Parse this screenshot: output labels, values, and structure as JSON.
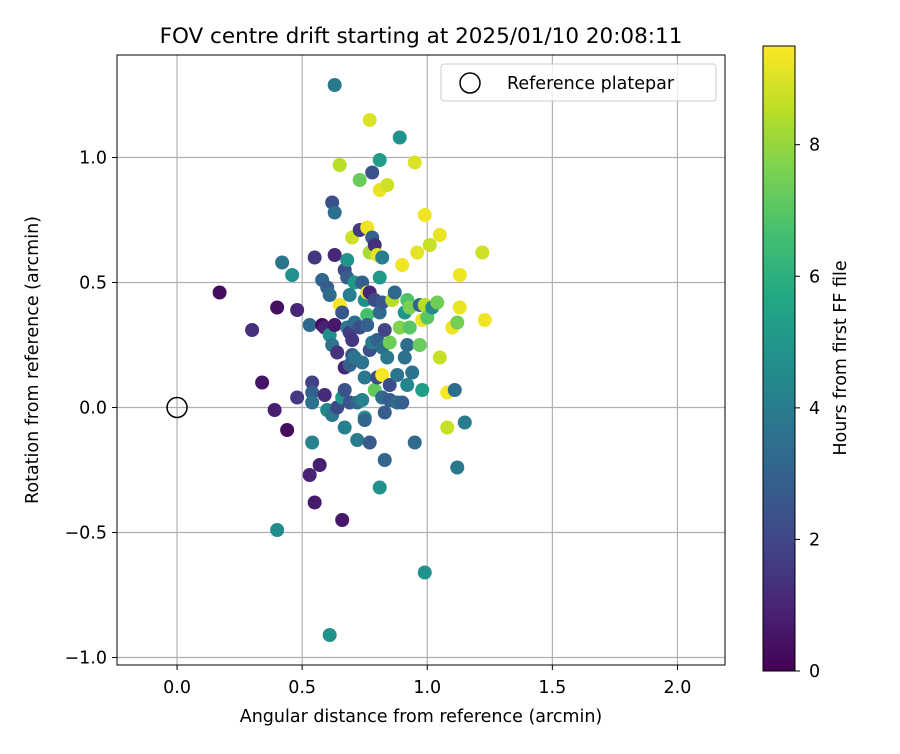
{
  "chart_data": {
    "type": "scatter",
    "title": "FOV centre drift starting at 2025/01/10 20:08:11",
    "xlabel": "Angular distance from reference (arcmin)",
    "ylabel": "Rotation from reference (arcmin)",
    "xlim": [
      -0.24,
      2.19
    ],
    "ylim": [
      -1.03,
      1.41
    ],
    "xticks": [
      0.0,
      0.5,
      1.0,
      1.5,
      2.0
    ],
    "xtick_labels": [
      "0.0",
      "0.5",
      "1.0",
      "1.5",
      "2.0"
    ],
    "yticks": [
      -1.0,
      -0.5,
      0.0,
      0.5,
      1.0
    ],
    "ytick_labels": [
      "−1.0",
      "−0.5",
      "0.0",
      "0.5",
      "1.0"
    ],
    "grid": true,
    "colormap": "viridis",
    "colorbar": {
      "label": "Hours from first FF file",
      "range": [
        0,
        9.5
      ],
      "ticks": [
        0,
        2,
        4,
        6,
        8
      ],
      "tick_labels": [
        "0",
        "2",
        "4",
        "6",
        "8"
      ]
    },
    "legend": {
      "location": "upper right",
      "entries": [
        {
          "label": "Reference platepar",
          "marker": "open-circle"
        }
      ]
    },
    "reference_point": {
      "x": 0.0,
      "y": 0.0
    },
    "points": [
      {
        "x": 0.17,
        "y": 0.46,
        "h": 0.3
      },
      {
        "x": 0.3,
        "y": 0.31,
        "h": 1.3
      },
      {
        "x": 0.34,
        "y": 0.1,
        "h": 0.5
      },
      {
        "x": 0.39,
        "y": -0.01,
        "h": 0.8
      },
      {
        "x": 0.4,
        "y": 0.4,
        "h": 0.4
      },
      {
        "x": 0.44,
        "y": -0.09,
        "h": 0.3
      },
      {
        "x": 0.48,
        "y": 0.39,
        "h": 1.0
      },
      {
        "x": 0.48,
        "y": 0.04,
        "h": 1.6
      },
      {
        "x": 0.4,
        "y": -0.49,
        "h": 4.6
      },
      {
        "x": 0.42,
        "y": 0.58,
        "h": 3.6
      },
      {
        "x": 0.46,
        "y": 0.53,
        "h": 4.8
      },
      {
        "x": 0.53,
        "y": 0.33,
        "h": 3.2
      },
      {
        "x": 0.53,
        "y": -0.27,
        "h": 0.9
      },
      {
        "x": 0.54,
        "y": 0.1,
        "h": 1.8
      },
      {
        "x": 0.54,
        "y": 0.06,
        "h": 2.9
      },
      {
        "x": 0.54,
        "y": 0.02,
        "h": 3.5
      },
      {
        "x": 0.54,
        "y": -0.14,
        "h": 4.2
      },
      {
        "x": 0.55,
        "y": 0.6,
        "h": 1.5
      },
      {
        "x": 0.55,
        "y": -0.38,
        "h": 0.7
      },
      {
        "x": 0.57,
        "y": -0.23,
        "h": 0.8
      },
      {
        "x": 0.58,
        "y": 0.51,
        "h": 3.1
      },
      {
        "x": 0.58,
        "y": 0.33,
        "h": 0.2
      },
      {
        "x": 0.59,
        "y": 0.32,
        "h": 0.9
      },
      {
        "x": 0.59,
        "y": 0.05,
        "h": 1.2
      },
      {
        "x": 0.6,
        "y": 0.48,
        "h": 2.8
      },
      {
        "x": 0.6,
        "y": -0.01,
        "h": 4.4
      },
      {
        "x": 0.61,
        "y": -0.91,
        "h": 4.8
      },
      {
        "x": 0.61,
        "y": 0.45,
        "h": 3.3
      },
      {
        "x": 0.61,
        "y": 0.29,
        "h": 4.7
      },
      {
        "x": 0.62,
        "y": 0.82,
        "h": 2.3
      },
      {
        "x": 0.62,
        "y": 0.25,
        "h": 3.6
      },
      {
        "x": 0.62,
        "y": -0.03,
        "h": 3.8
      },
      {
        "x": 0.63,
        "y": 1.29,
        "h": 3.8
      },
      {
        "x": 0.63,
        "y": 0.78,
        "h": 3.5
      },
      {
        "x": 0.63,
        "y": 0.61,
        "h": 1.0
      },
      {
        "x": 0.63,
        "y": 0.33,
        "h": 0.6
      },
      {
        "x": 0.64,
        "y": 0.22,
        "h": 1.4
      },
      {
        "x": 0.64,
        "y": 0.0,
        "h": 2.1
      },
      {
        "x": 0.65,
        "y": 0.97,
        "h": 8.5
      },
      {
        "x": 0.65,
        "y": 0.41,
        "h": 9.4
      },
      {
        "x": 0.66,
        "y": 0.38,
        "h": 2.6
      },
      {
        "x": 0.66,
        "y": -0.45,
        "h": 0.6
      },
      {
        "x": 0.66,
        "y": 0.04,
        "h": 5.0
      },
      {
        "x": 0.67,
        "y": 0.55,
        "h": 2.2
      },
      {
        "x": 0.67,
        "y": 0.16,
        "h": 1.0
      },
      {
        "x": 0.67,
        "y": 0.07,
        "h": 2.4
      },
      {
        "x": 0.67,
        "y": -0.08,
        "h": 4.1
      },
      {
        "x": 0.68,
        "y": 0.59,
        "h": 4.9
      },
      {
        "x": 0.68,
        "y": 0.52,
        "h": 2.8
      },
      {
        "x": 0.68,
        "y": 0.32,
        "h": 3.9
      },
      {
        "x": 0.69,
        "y": 0.45,
        "h": 4.0
      },
      {
        "x": 0.69,
        "y": 0.3,
        "h": 1.7
      },
      {
        "x": 0.69,
        "y": 0.17,
        "h": 3.0
      },
      {
        "x": 0.69,
        "y": 0.02,
        "h": 2.5
      },
      {
        "x": 0.7,
        "y": 0.68,
        "h": 8.8
      },
      {
        "x": 0.7,
        "y": 0.27,
        "h": 1.5
      },
      {
        "x": 0.7,
        "y": 0.21,
        "h": 2.6
      },
      {
        "x": 0.71,
        "y": 0.5,
        "h": 5.0
      },
      {
        "x": 0.71,
        "y": 0.34,
        "h": 3.4
      },
      {
        "x": 0.71,
        "y": 0.2,
        "h": 3.7
      },
      {
        "x": 0.72,
        "y": -0.13,
        "h": 3.9
      },
      {
        "x": 0.72,
        "y": 0.02,
        "h": 3.1
      },
      {
        "x": 0.73,
        "y": 0.91,
        "h": 7.3
      },
      {
        "x": 0.73,
        "y": 0.71,
        "h": 1.6
      },
      {
        "x": 0.73,
        "y": 0.32,
        "h": 2.2
      },
      {
        "x": 0.74,
        "y": 0.5,
        "h": 2.9
      },
      {
        "x": 0.74,
        "y": 0.18,
        "h": 3.6
      },
      {
        "x": 0.74,
        "y": 0.03,
        "h": 4.1
      },
      {
        "x": 0.75,
        "y": 0.43,
        "h": 4.7
      },
      {
        "x": 0.75,
        "y": 0.12,
        "h": 3.8
      },
      {
        "x": 0.75,
        "y": -0.04,
        "h": 4.9
      },
      {
        "x": 0.75,
        "y": -0.05,
        "h": 3.1
      },
      {
        "x": 0.76,
        "y": 0.72,
        "h": 9.3
      },
      {
        "x": 0.76,
        "y": 0.46,
        "h": 9.1
      },
      {
        "x": 0.76,
        "y": 0.37,
        "h": 6.7
      },
      {
        "x": 0.76,
        "y": 0.33,
        "h": 3.0
      },
      {
        "x": 0.77,
        "y": 1.15,
        "h": 9.0
      },
      {
        "x": 0.77,
        "y": 0.62,
        "h": 8.3
      },
      {
        "x": 0.77,
        "y": 0.46,
        "h": 1.0
      },
      {
        "x": 0.77,
        "y": 0.23,
        "h": 2.3
      },
      {
        "x": 0.77,
        "y": -0.14,
        "h": 2.7
      },
      {
        "x": 0.78,
        "y": 0.94,
        "h": 2.4
      },
      {
        "x": 0.78,
        "y": 0.68,
        "h": 3.0
      },
      {
        "x": 0.78,
        "y": 0.26,
        "h": 3.9
      },
      {
        "x": 0.79,
        "y": 0.65,
        "h": 1.3
      },
      {
        "x": 0.79,
        "y": 0.43,
        "h": 2.1
      },
      {
        "x": 0.79,
        "y": 0.07,
        "h": 7.2
      },
      {
        "x": 0.8,
        "y": 0.61,
        "h": 9.1
      },
      {
        "x": 0.8,
        "y": 0.27,
        "h": 2.9
      },
      {
        "x": 0.8,
        "y": 0.12,
        "h": 2.2
      },
      {
        "x": 0.81,
        "y": 0.99,
        "h": 5.3
      },
      {
        "x": 0.81,
        "y": 0.87,
        "h": 9.2
      },
      {
        "x": 0.81,
        "y": 0.52,
        "h": 5.2
      },
      {
        "x": 0.81,
        "y": 0.38,
        "h": 3.3
      },
      {
        "x": 0.81,
        "y": -0.32,
        "h": 4.8
      },
      {
        "x": 0.82,
        "y": 0.6,
        "h": 4.0
      },
      {
        "x": 0.82,
        "y": 0.42,
        "h": 2.6
      },
      {
        "x": 0.82,
        "y": 0.24,
        "h": 3.5
      },
      {
        "x": 0.82,
        "y": 0.13,
        "h": 9.4
      },
      {
        "x": 0.82,
        "y": 0.04,
        "h": 3.3
      },
      {
        "x": 0.83,
        "y": 0.31,
        "h": 1.9
      },
      {
        "x": 0.83,
        "y": -0.21,
        "h": 3.1
      },
      {
        "x": 0.83,
        "y": -0.02,
        "h": 2.8
      },
      {
        "x": 0.84,
        "y": 0.89,
        "h": 8.8
      },
      {
        "x": 0.84,
        "y": 0.2,
        "h": 3.8
      },
      {
        "x": 0.85,
        "y": 0.26,
        "h": 7.4
      },
      {
        "x": 0.85,
        "y": 0.09,
        "h": 2.2
      },
      {
        "x": 0.85,
        "y": 0.03,
        "h": 2.7
      },
      {
        "x": 0.86,
        "y": 0.43,
        "h": 8.5
      },
      {
        "x": 0.87,
        "y": 0.46,
        "h": 3.2
      },
      {
        "x": 0.88,
        "y": 0.13,
        "h": 3.6
      },
      {
        "x": 0.88,
        "y": 0.02,
        "h": 3.3
      },
      {
        "x": 0.89,
        "y": 1.08,
        "h": 4.8
      },
      {
        "x": 0.89,
        "y": 0.32,
        "h": 7.7
      },
      {
        "x": 0.9,
        "y": 0.57,
        "h": 9.3
      },
      {
        "x": 0.9,
        "y": 0.02,
        "h": 2.9
      },
      {
        "x": 0.91,
        "y": 0.38,
        "h": 4.9
      },
      {
        "x": 0.91,
        "y": 0.2,
        "h": 3.5
      },
      {
        "x": 0.92,
        "y": 0.43,
        "h": 6.8
      },
      {
        "x": 0.92,
        "y": 0.09,
        "h": 4.3
      },
      {
        "x": 0.92,
        "y": 0.25,
        "h": 3.4
      },
      {
        "x": 0.93,
        "y": 0.32,
        "h": 7.0
      },
      {
        "x": 0.93,
        "y": 0.4,
        "h": 7.6
      },
      {
        "x": 0.94,
        "y": 0.14,
        "h": 3.6
      },
      {
        "x": 0.95,
        "y": 0.98,
        "h": 9.0
      },
      {
        "x": 0.95,
        "y": -0.14,
        "h": 3.3
      },
      {
        "x": 0.96,
        "y": 0.62,
        "h": 9.1
      },
      {
        "x": 0.97,
        "y": 0.25,
        "h": 7.3
      },
      {
        "x": 0.97,
        "y": 0.41,
        "h": 3.1
      },
      {
        "x": 0.98,
        "y": 0.35,
        "h": 9.2
      },
      {
        "x": 0.98,
        "y": 0.07,
        "h": 5.3
      },
      {
        "x": 0.99,
        "y": 0.77,
        "h": 9.3
      },
      {
        "x": 0.99,
        "y": 0.41,
        "h": 8.5
      },
      {
        "x": 0.99,
        "y": -0.66,
        "h": 4.8
      },
      {
        "x": 1.0,
        "y": 0.36,
        "h": 7.0
      },
      {
        "x": 1.01,
        "y": 0.65,
        "h": 8.7
      },
      {
        "x": 1.02,
        "y": 0.4,
        "h": 4.5
      },
      {
        "x": 1.04,
        "y": 0.42,
        "h": 7.4
      },
      {
        "x": 1.05,
        "y": 0.69,
        "h": 9.2
      },
      {
        "x": 1.05,
        "y": 0.2,
        "h": 8.7
      },
      {
        "x": 1.08,
        "y": 0.06,
        "h": 9.4
      },
      {
        "x": 1.08,
        "y": -0.08,
        "h": 8.7
      },
      {
        "x": 1.1,
        "y": 0.32,
        "h": 9.3
      },
      {
        "x": 1.11,
        "y": 0.07,
        "h": 3.4
      },
      {
        "x": 1.12,
        "y": -0.24,
        "h": 3.8
      },
      {
        "x": 1.12,
        "y": 0.34,
        "h": 7.5
      },
      {
        "x": 1.13,
        "y": 0.53,
        "h": 9.3
      },
      {
        "x": 1.13,
        "y": 0.4,
        "h": 9.2
      },
      {
        "x": 1.15,
        "y": -0.06,
        "h": 3.9
      },
      {
        "x": 1.22,
        "y": 0.62,
        "h": 8.8
      },
      {
        "x": 1.23,
        "y": 0.35,
        "h": 9.3
      }
    ]
  }
}
